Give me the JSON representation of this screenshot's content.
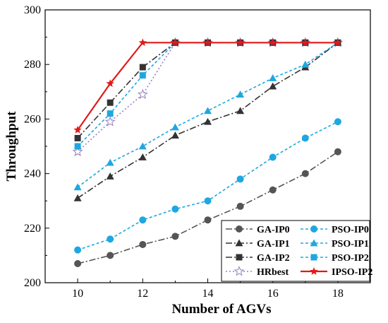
{
  "chart_data": {
    "type": "line",
    "xlabel": "Number of AGVs",
    "ylabel": "Throughput",
    "xlim": [
      9,
      19
    ],
    "ylim": [
      200,
      300
    ],
    "xticks": [
      10,
      12,
      14,
      16,
      18
    ],
    "yticks": [
      200,
      220,
      240,
      260,
      280,
      300
    ],
    "x": [
      10,
      11,
      12,
      13,
      14,
      15,
      16,
      17,
      18
    ],
    "grid": false,
    "legend_position": "bottom-right",
    "series": [
      {
        "name": "GA-IP0",
        "color": "#555555",
        "style": "dashdot",
        "marker": "circle",
        "values": [
          207,
          210,
          214,
          217,
          223,
          228,
          234,
          240,
          248
        ]
      },
      {
        "name": "PSO-IP0",
        "color": "#1ea7e0",
        "style": "dash",
        "marker": "circle",
        "values": [
          212,
          216,
          223,
          227,
          230,
          238,
          246,
          253,
          259
        ]
      },
      {
        "name": "GA-IP1",
        "color": "#333333",
        "style": "dashdot",
        "marker": "triangle",
        "values": [
          231,
          239,
          246,
          254,
          259,
          263,
          272,
          279,
          288
        ]
      },
      {
        "name": "PSO-IP1",
        "color": "#1ea7e0",
        "style": "dash",
        "marker": "triangle",
        "values": [
          235,
          244,
          250,
          257,
          263,
          269,
          275,
          280,
          288
        ]
      },
      {
        "name": "GA-IP2",
        "color": "#333333",
        "style": "dashdot",
        "marker": "square",
        "values": [
          253,
          266,
          279,
          288,
          288,
          288,
          288,
          288,
          288
        ]
      },
      {
        "name": "PSO-IP2",
        "color": "#1ea7e0",
        "style": "dash",
        "marker": "square",
        "values": [
          250,
          262,
          276,
          288,
          288,
          288,
          288,
          288,
          288
        ]
      },
      {
        "name": "HRbest",
        "color": "#9a7fc0",
        "style": "dot",
        "marker": "star-open",
        "values": [
          248,
          259,
          269,
          288,
          288,
          288,
          288,
          288,
          288
        ]
      },
      {
        "name": "IPSO-IP2",
        "color": "#e01a1a",
        "style": "solid",
        "marker": "star",
        "values": [
          256,
          273,
          288,
          288,
          288,
          288,
          288,
          288,
          288
        ]
      }
    ],
    "legend_order": [
      [
        "GA-IP0",
        "PSO-IP0"
      ],
      [
        "GA-IP1",
        "PSO-IP1"
      ],
      [
        "GA-IP2",
        "PSO-IP2"
      ],
      [
        "HRbest",
        "IPSO-IP2"
      ]
    ]
  }
}
